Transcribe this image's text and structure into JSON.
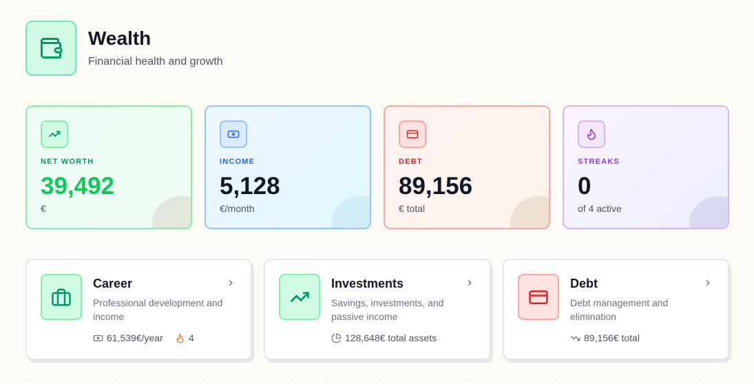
{
  "header": {
    "title": "Wealth",
    "subtitle": "Financial health and growth"
  },
  "stats": [
    {
      "label": "NET WORTH",
      "value": "39,492",
      "unit": "€"
    },
    {
      "label": "INCOME",
      "value": "5,128",
      "unit": "€/month"
    },
    {
      "label": "DEBT",
      "value": "89,156",
      "unit": "€ total"
    },
    {
      "label": "STREAKS",
      "value": "0",
      "unit": "of 4 active"
    }
  ],
  "sections": [
    {
      "title": "Career",
      "description": "Professional development and income",
      "meta": [
        "61,539€/year",
        "4"
      ]
    },
    {
      "title": "Investments",
      "description": "Savings, investments, and passive income",
      "meta": [
        "128,648€ total assets"
      ]
    },
    {
      "title": "Debt",
      "description": "Debt management and elimination",
      "meta": [
        "89,156€ total"
      ]
    }
  ]
}
